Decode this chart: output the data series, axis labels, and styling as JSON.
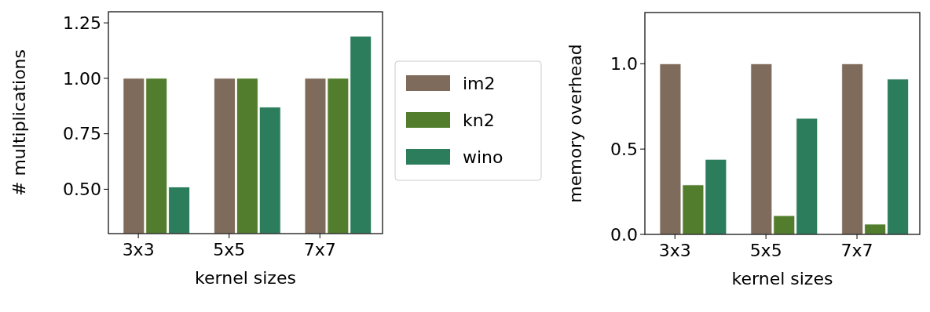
{
  "chart_data": [
    {
      "type": "bar",
      "xlabel": "kernel sizes",
      "ylabel": "# multiplications",
      "categories": [
        "3x3",
        "5x5",
        "7x7"
      ],
      "ylim": [
        0.3,
        1.3
      ],
      "yticks": [
        {
          "value": 0.5,
          "label": "0.50"
        },
        0.75,
        {
          "value": 1,
          "label": "1.00"
        },
        1.25
      ],
      "legend": "right",
      "series": [
        {
          "name": "im2",
          "color": "#7f6b5b",
          "values": [
            1,
            1,
            1
          ]
        },
        {
          "name": "kn2",
          "color": "#527d2c",
          "values": [
            1,
            1,
            1
          ]
        },
        {
          "name": "wino",
          "color": "#2b7d5c",
          "values": [
            0.51,
            0.87,
            1.19
          ]
        }
      ]
    },
    {
      "type": "bar",
      "xlabel": "kernel sizes",
      "ylabel": "memory overhead",
      "categories": [
        "3x3",
        "5x5",
        "7x7"
      ],
      "ylim": [
        0,
        1.3
      ],
      "yticks": [
        {
          "value": 0,
          "label": "0.0"
        },
        0.5,
        {
          "value": 1,
          "label": "1.0"
        }
      ],
      "series": [
        {
          "color": "#7f6b5b",
          "values": [
            1,
            1,
            1
          ]
        },
        {
          "color": "#527d2c",
          "values": [
            0.29,
            0.11,
            0.06
          ]
        },
        {
          "color": "#2b7d5c",
          "values": [
            0.44,
            0.68,
            0.91
          ]
        }
      ]
    }
  ]
}
